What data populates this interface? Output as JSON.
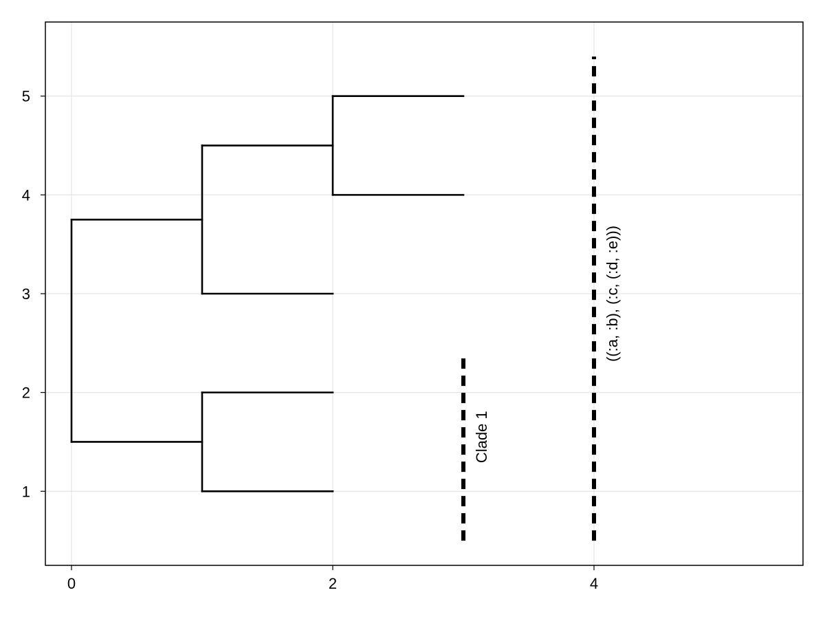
{
  "chart_data": {
    "type": "dendrogram",
    "title": "",
    "xlabel": "",
    "ylabel": "",
    "xlim": [
      -0.2,
      5.6
    ],
    "ylim": [
      0.25,
      5.75
    ],
    "grid": true,
    "x_ticks": [
      0,
      2,
      4
    ],
    "y_ticks": [
      1,
      2,
      3,
      4,
      5
    ],
    "branches": [
      {
        "x": [
          0,
          0
        ],
        "y": [
          1.5,
          3.75
        ]
      },
      {
        "x": [
          0,
          1
        ],
        "y": [
          1.5,
          1.5
        ]
      },
      {
        "x": [
          0,
          1
        ],
        "y": [
          3.75,
          3.75
        ]
      },
      {
        "x": [
          1,
          1
        ],
        "y": [
          1,
          2
        ]
      },
      {
        "x": [
          1,
          2
        ],
        "y": [
          1,
          1
        ]
      },
      {
        "x": [
          1,
          2
        ],
        "y": [
          2,
          2
        ]
      },
      {
        "x": [
          1,
          1
        ],
        "y": [
          3,
          4.5
        ]
      },
      {
        "x": [
          1,
          2
        ],
        "y": [
          3,
          3
        ]
      },
      {
        "x": [
          1,
          2
        ],
        "y": [
          4.5,
          4.5
        ]
      },
      {
        "x": [
          2,
          2
        ],
        "y": [
          4,
          5
        ]
      },
      {
        "x": [
          2,
          3
        ],
        "y": [
          4,
          4
        ]
      },
      {
        "x": [
          2,
          3
        ],
        "y": [
          5,
          5
        ]
      }
    ],
    "annotations": [
      {
        "x": 3,
        "y_range": [
          0.5,
          2.4
        ],
        "label": "Clade 1",
        "label_y": 1.55
      },
      {
        "x": 4,
        "y_range": [
          0.5,
          5.4
        ],
        "label": "((:a, :b), (:c, (:d, :e)))",
        "label_y": 3.0
      }
    ]
  }
}
